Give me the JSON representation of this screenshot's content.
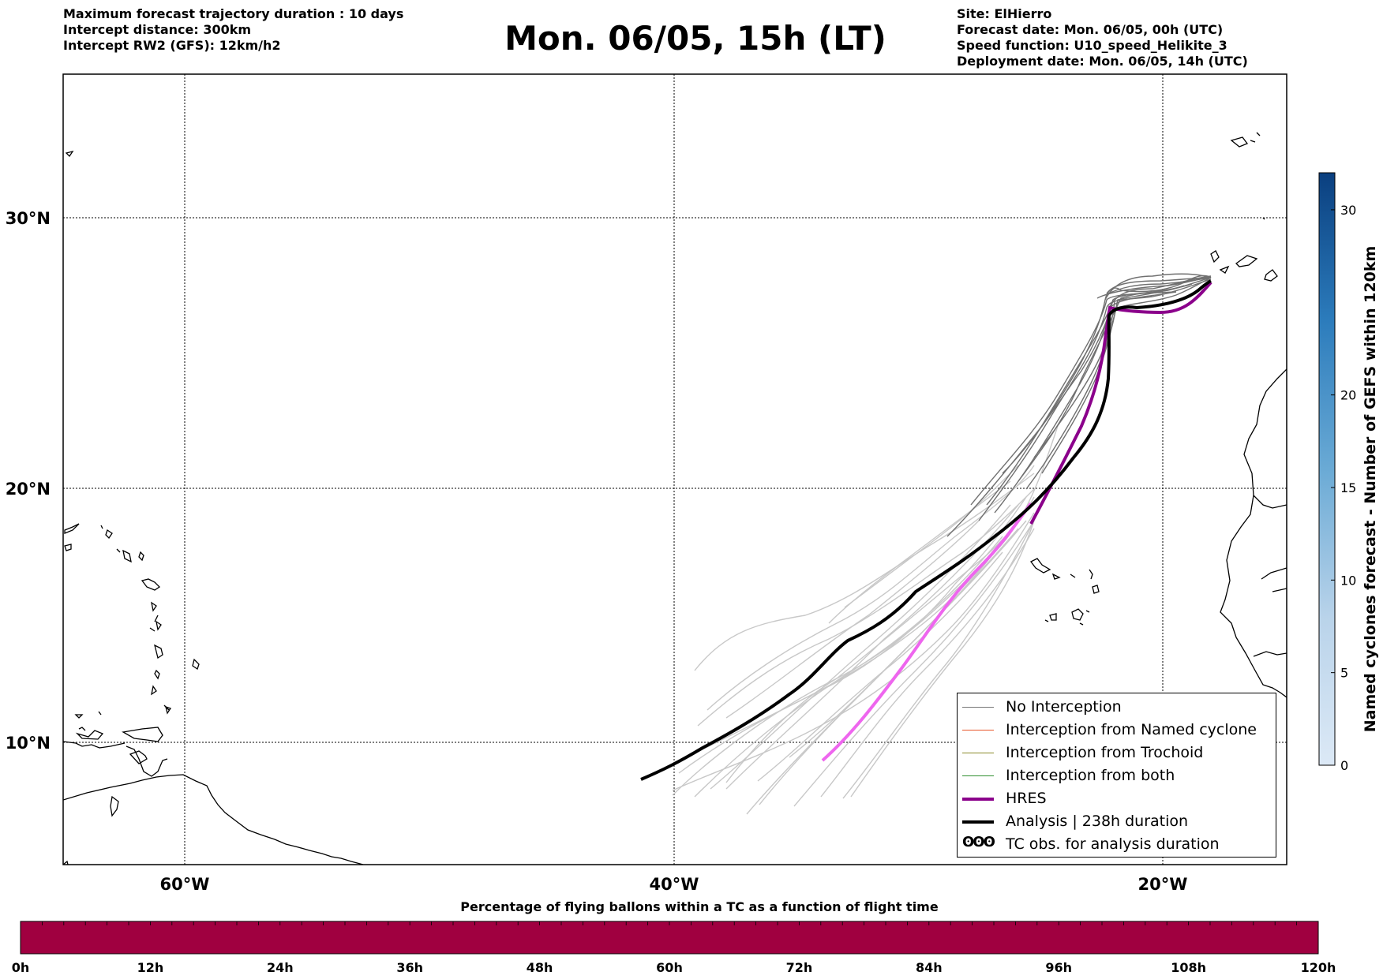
{
  "header": {
    "left_lines": [
      "Maximum forecast trajectory duration : 10 days",
      "Intercept distance: 300km",
      "Intercept RW2 (GFS):  12km/h2"
    ],
    "title": "Mon. 06/05, 15h (LT)",
    "right_lines": [
      "Site: ElHierro",
      "Forecast date: Mon. 06/05, 00h (UTC)",
      "Speed function: U10_speed_Helikite_3",
      "Deployment date: Mon. 06/05, 14h (UTC)"
    ]
  },
  "map": {
    "lat_labels": [
      "30°N",
      "20°N",
      "10°N"
    ],
    "lon_labels": [
      "60°W",
      "40°W",
      "20°W"
    ],
    "lat_values": [
      30,
      20,
      10
    ],
    "lon_values": [
      -60,
      -40,
      -20
    ]
  },
  "legend": {
    "items": [
      {
        "label": "No Interception",
        "color": "#777777",
        "kind": "thin"
      },
      {
        "label": "Interception from Named cyclone",
        "color": "#e8562a",
        "kind": "thin"
      },
      {
        "label": "Interception from Trochoid",
        "color": "#8a8a2a",
        "kind": "thin"
      },
      {
        "label": "Interception from both",
        "color": "#2f8f2f",
        "kind": "thin"
      },
      {
        "label": "HRES",
        "color": "#8b008b",
        "kind": "thick"
      },
      {
        "label": "Analysis | 238h duration",
        "color": "#000000",
        "kind": "thick"
      },
      {
        "label": "TC obs. for analysis duration",
        "color": "#000000",
        "kind": "symbol",
        "symbol": "ʘʘʘ"
      }
    ]
  },
  "colorbar": {
    "label": "Named cyclones forecast - Number of GEFS within 120km",
    "ticks": [
      0,
      5,
      10,
      15,
      20,
      30
    ],
    "max": 32
  },
  "bottom_bar": {
    "title": "Percentage of flying ballons within a TC as a function of flight time",
    "ticks": [
      "0h",
      "12h",
      "24h",
      "36h",
      "48h",
      "60h",
      "72h",
      "84h",
      "96h",
      "108h",
      "120h"
    ],
    "color": "#a00040"
  },
  "colors": {
    "analysis": "#000000",
    "hres": "#8b008b",
    "hres_light": "#ee66ee",
    "ensemble_dark": "#707070",
    "ensemble_light": "#c8c8c8"
  }
}
